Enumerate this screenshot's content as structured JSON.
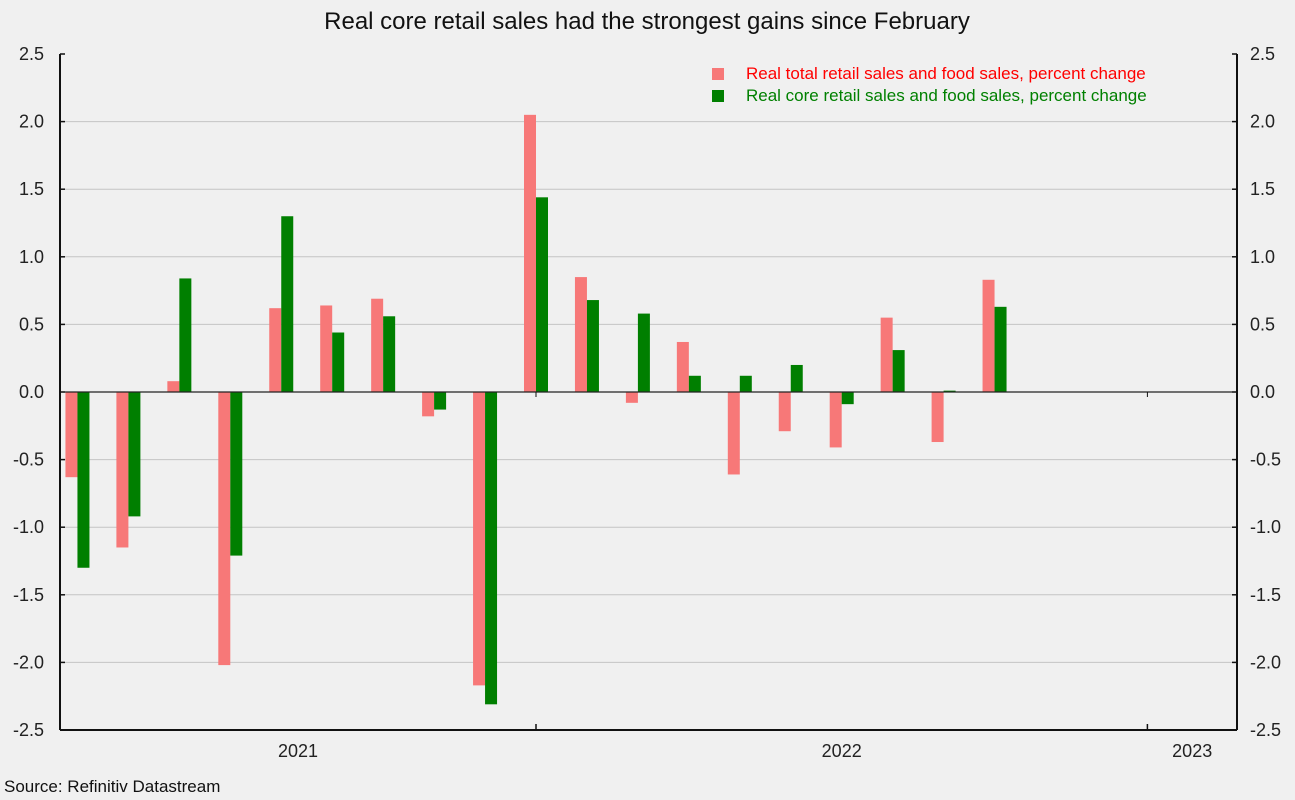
{
  "chart_data": {
    "type": "bar",
    "title": "Real core retail sales had the strongest gains since February",
    "source": "Source: Refinitiv Datastream",
    "categories": [
      "2021-04",
      "2021-05",
      "2021-06",
      "2021-07",
      "2021-08",
      "2021-09",
      "2021-10",
      "2021-11",
      "2021-12",
      "2022-01",
      "2022-02",
      "2022-03",
      "2022-04",
      "2022-05",
      "2022-06",
      "2022-07",
      "2022-08",
      "2022-09",
      "2022-10"
    ],
    "series": [
      {
        "name": "Real total retail sales and food sales, percent change",
        "color": "#f77878",
        "legend_color": "#ff0000",
        "values": [
          -0.63,
          -1.15,
          0.08,
          -2.02,
          0.62,
          0.64,
          0.69,
          -0.18,
          -2.17,
          2.05,
          0.85,
          -0.08,
          0.37,
          -0.61,
          -0.29,
          -0.41,
          0.55,
          -0.37,
          0.83
        ]
      },
      {
        "name": "Real core retail sales and food sales, percent change",
        "color": "#007f00",
        "legend_color": "#008000",
        "values": [
          -1.3,
          -0.92,
          0.84,
          -1.21,
          1.3,
          0.44,
          0.56,
          -0.13,
          -2.31,
          1.44,
          0.68,
          0.58,
          0.12,
          0.12,
          0.2,
          -0.09,
          0.31,
          0.01,
          0.63
        ]
      }
    ],
    "ylim": [
      -2.5,
      2.5
    ],
    "yticks": [
      "2.5",
      "2.0",
      "1.5",
      "1.0",
      "0.5",
      "0.0",
      "-0.5",
      "-1.0",
      "-1.5",
      "-2.0",
      "-2.5"
    ],
    "xtick_labels": [
      "2021",
      "2022",
      "2023"
    ],
    "grid": true,
    "legend_position": "top-right"
  }
}
